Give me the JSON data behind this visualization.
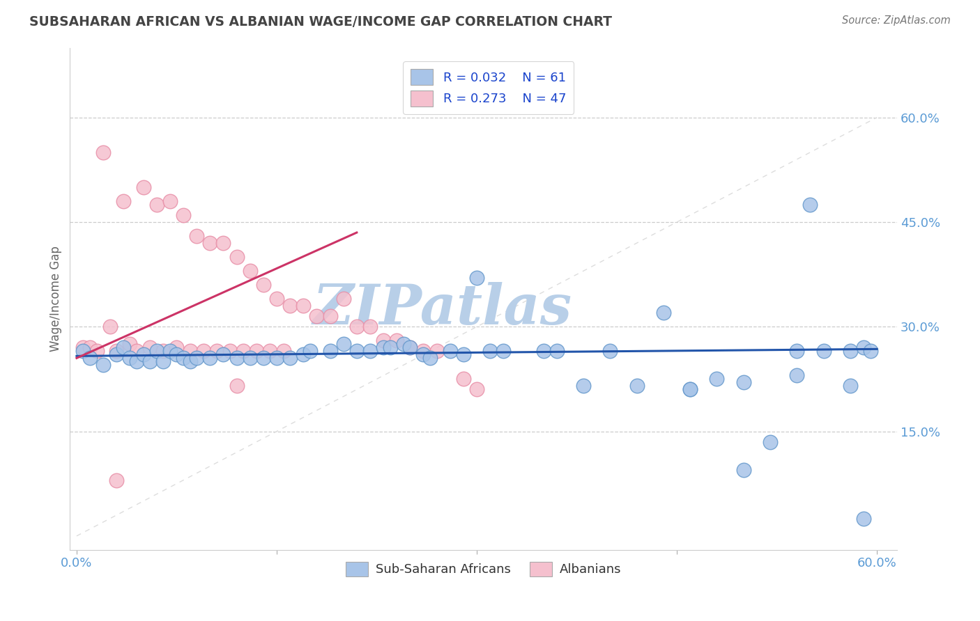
{
  "title": "SUBSAHARAN AFRICAN VS ALBANIAN WAGE/INCOME GAP CORRELATION CHART",
  "source_text": "Source: ZipAtlas.com",
  "ylabel": "Wage/Income Gap",
  "xlim": [
    -0.005,
    0.615
  ],
  "ylim": [
    -0.02,
    0.7
  ],
  "xtick_values": [
    0.0,
    0.15,
    0.3,
    0.45,
    0.6
  ],
  "xtick_labels": [
    "0.0%",
    "",
    "",
    "",
    "60.0%"
  ],
  "ytick_values": [
    0.15,
    0.3,
    0.45,
    0.6
  ],
  "ytick_labels": [
    "15.0%",
    "30.0%",
    "45.0%",
    "60.0%"
  ],
  "title_color": "#444444",
  "axis_label_color": "#5b9bd5",
  "grid_color": "#cccccc",
  "watermark": "ZIPatlas",
  "watermark_color": "#b8cfe8",
  "blue_fill": "#a8c4e8",
  "blue_edge": "#6699cc",
  "pink_fill": "#f5c0ce",
  "pink_edge": "#e890a8",
  "blue_line_color": "#2255aa",
  "pink_line_color": "#cc3366",
  "diag_line_color": "#dddddd",
  "blue_x": [
    0.005,
    0.01,
    0.02,
    0.03,
    0.035,
    0.04,
    0.045,
    0.05,
    0.055,
    0.06,
    0.065,
    0.07,
    0.075,
    0.08,
    0.085,
    0.09,
    0.1,
    0.11,
    0.12,
    0.13,
    0.14,
    0.15,
    0.16,
    0.17,
    0.175,
    0.19,
    0.2,
    0.21,
    0.22,
    0.23,
    0.235,
    0.245,
    0.25,
    0.26,
    0.265,
    0.28,
    0.29,
    0.3,
    0.31,
    0.32,
    0.35,
    0.36,
    0.38,
    0.4,
    0.42,
    0.44,
    0.46,
    0.48,
    0.5,
    0.52,
    0.54,
    0.55,
    0.56,
    0.58,
    0.59,
    0.595,
    0.46,
    0.5,
    0.54,
    0.58,
    0.59
  ],
  "blue_y": [
    0.265,
    0.255,
    0.245,
    0.26,
    0.27,
    0.255,
    0.25,
    0.26,
    0.25,
    0.265,
    0.25,
    0.265,
    0.26,
    0.255,
    0.25,
    0.255,
    0.255,
    0.26,
    0.255,
    0.255,
    0.255,
    0.255,
    0.255,
    0.26,
    0.265,
    0.265,
    0.275,
    0.265,
    0.265,
    0.27,
    0.27,
    0.275,
    0.27,
    0.26,
    0.255,
    0.265,
    0.26,
    0.37,
    0.265,
    0.265,
    0.265,
    0.265,
    0.215,
    0.265,
    0.215,
    0.32,
    0.21,
    0.225,
    0.095,
    0.135,
    0.265,
    0.475,
    0.265,
    0.265,
    0.27,
    0.265,
    0.21,
    0.22,
    0.23,
    0.215,
    0.025
  ],
  "pink_x": [
    0.005,
    0.01,
    0.015,
    0.02,
    0.025,
    0.03,
    0.035,
    0.04,
    0.045,
    0.05,
    0.055,
    0.06,
    0.065,
    0.07,
    0.075,
    0.08,
    0.085,
    0.09,
    0.095,
    0.1,
    0.105,
    0.11,
    0.115,
    0.12,
    0.125,
    0.13,
    0.135,
    0.14,
    0.145,
    0.15,
    0.155,
    0.16,
    0.17,
    0.18,
    0.19,
    0.2,
    0.21,
    0.22,
    0.23,
    0.24,
    0.25,
    0.26,
    0.27,
    0.29,
    0.3,
    0.03,
    0.12
  ],
  "pink_y": [
    0.27,
    0.27,
    0.265,
    0.55,
    0.3,
    0.265,
    0.48,
    0.275,
    0.265,
    0.5,
    0.27,
    0.475,
    0.265,
    0.48,
    0.27,
    0.46,
    0.265,
    0.43,
    0.265,
    0.42,
    0.265,
    0.42,
    0.265,
    0.4,
    0.265,
    0.38,
    0.265,
    0.36,
    0.265,
    0.34,
    0.265,
    0.33,
    0.33,
    0.315,
    0.315,
    0.34,
    0.3,
    0.3,
    0.28,
    0.28,
    0.27,
    0.265,
    0.265,
    0.225,
    0.21,
    0.08,
    0.215
  ],
  "pink_line_x0": 0.0,
  "pink_line_x1": 0.21,
  "pink_line_y0": 0.255,
  "pink_line_y1": 0.435,
  "blue_line_x0": 0.0,
  "blue_line_x1": 0.6,
  "blue_line_y0": 0.258,
  "blue_line_y1": 0.268
}
